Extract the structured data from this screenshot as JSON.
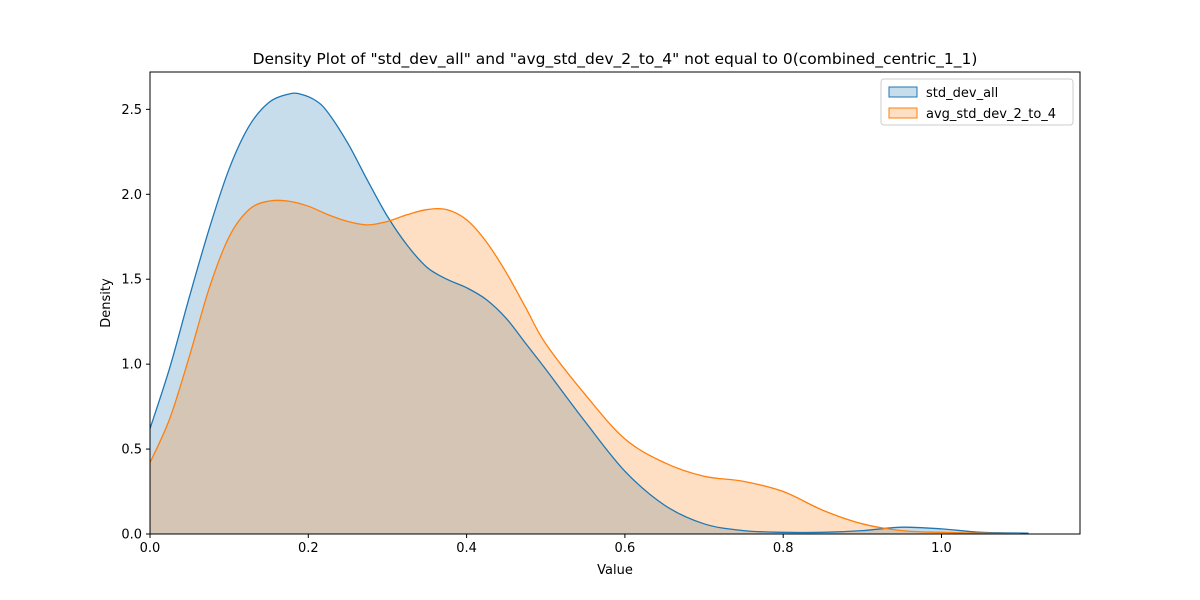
{
  "chart_data": {
    "type": "area",
    "title": "Density Plot of \"std_dev_all\" and \"avg_std_dev_2_to_4\" not equal to 0(combined_centric_1_1)",
    "xlabel": "Value",
    "ylabel": "Density",
    "xlim": [
      0.0,
      1.175
    ],
    "ylim": [
      0.0,
      2.72
    ],
    "xticks": [
      "0.0",
      "0.2",
      "0.4",
      "0.6",
      "0.8",
      "1.0"
    ],
    "yticks": [
      "0.0",
      "0.5",
      "1.0",
      "1.5",
      "2.0",
      "2.5"
    ],
    "grid": false,
    "legend_position": "top-right",
    "series": [
      {
        "name": "std_dev_all",
        "color": "#1f77b4",
        "fill_color": "#1f77b4",
        "fill_alpha": 0.25,
        "x": [
          0.0,
          0.025,
          0.05,
          0.075,
          0.1,
          0.125,
          0.15,
          0.175,
          0.19,
          0.21,
          0.225,
          0.25,
          0.275,
          0.3,
          0.325,
          0.35,
          0.375,
          0.4,
          0.425,
          0.45,
          0.475,
          0.5,
          0.55,
          0.6,
          0.65,
          0.7,
          0.75,
          0.8,
          0.85,
          0.9,
          0.95,
          1.0,
          1.05,
          1.11
        ],
        "y": [
          0.62,
          0.98,
          1.4,
          1.8,
          2.15,
          2.4,
          2.54,
          2.59,
          2.59,
          2.55,
          2.48,
          2.3,
          2.08,
          1.87,
          1.7,
          1.57,
          1.5,
          1.45,
          1.38,
          1.27,
          1.12,
          0.97,
          0.66,
          0.37,
          0.17,
          0.06,
          0.02,
          0.01,
          0.01,
          0.02,
          0.04,
          0.03,
          0.01,
          0.005
        ]
      },
      {
        "name": "avg_std_dev_2_to_4",
        "color": "#ff7f0e",
        "fill_color": "#ff7f0e",
        "fill_alpha": 0.25,
        "x": [
          0.0,
          0.025,
          0.05,
          0.075,
          0.1,
          0.125,
          0.15,
          0.175,
          0.2,
          0.225,
          0.25,
          0.275,
          0.3,
          0.325,
          0.35,
          0.375,
          0.4,
          0.425,
          0.45,
          0.475,
          0.5,
          0.55,
          0.6,
          0.65,
          0.7,
          0.75,
          0.8,
          0.85,
          0.9,
          0.95,
          1.0,
          1.05,
          1.1
        ],
        "y": [
          0.42,
          0.68,
          1.05,
          1.45,
          1.75,
          1.91,
          1.96,
          1.96,
          1.93,
          1.88,
          1.84,
          1.82,
          1.84,
          1.88,
          1.91,
          1.91,
          1.85,
          1.72,
          1.54,
          1.33,
          1.12,
          0.82,
          0.56,
          0.42,
          0.34,
          0.31,
          0.25,
          0.14,
          0.06,
          0.02,
          0.01,
          0.005,
          0.002
        ]
      }
    ]
  }
}
